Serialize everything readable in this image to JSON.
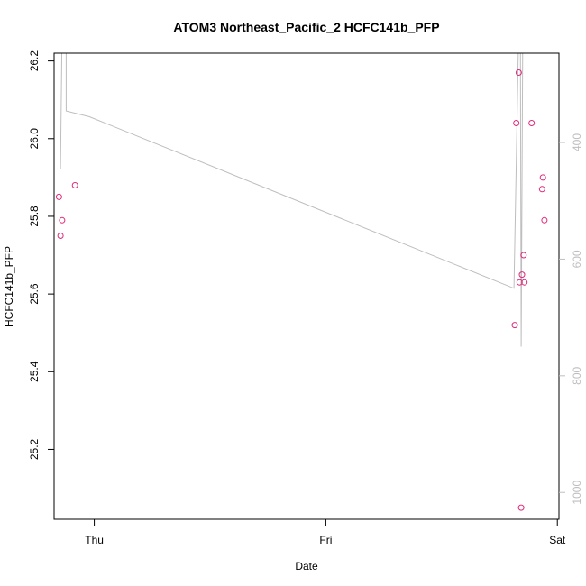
{
  "chart_data": {
    "type": "scatter",
    "title": "ATOM3 Northeast_Pacific_2 HCFC141b_PFP",
    "xlabel": "Date",
    "ylabel": "HCFC141b_PFP",
    "x_ticks": [
      "Thu",
      "Fri",
      "Sat"
    ],
    "x_range": [
      "Wed 19:50",
      "Sat 00:10"
    ],
    "ylim": [
      25.02,
      26.22
    ],
    "y_ticks": [
      "25.2",
      "25.4",
      "25.6",
      "25.8",
      "26.0",
      "26.2"
    ],
    "secondary_axis": {
      "side": "right",
      "ylim": [
        1046,
        247
      ],
      "ticks": [
        "400",
        "600",
        "800",
        "1000"
      ],
      "color": "#bebebe"
    },
    "points_color": "#e0287a",
    "line_color": "#bebebe",
    "points": [
      {
        "x": "Wed 20:20",
        "y": 25.85
      },
      {
        "x": "Wed 20:30",
        "y": 25.75
      },
      {
        "x": "Wed 20:40",
        "y": 25.79
      },
      {
        "x": "Wed 22:00",
        "y": 25.88
      },
      {
        "x": "Fri 19:35",
        "y": 25.52
      },
      {
        "x": "Fri 19:45",
        "y": 26.04
      },
      {
        "x": "Fri 20:00",
        "y": 26.17
      },
      {
        "x": "Fri 20:05",
        "y": 25.63
      },
      {
        "x": "Fri 20:15",
        "y": 25.05
      },
      {
        "x": "Fri 20:20",
        "y": 25.65
      },
      {
        "x": "Fri 20:30",
        "y": 25.7
      },
      {
        "x": "Fri 20:35",
        "y": 25.63
      },
      {
        "x": "Fri 21:20",
        "y": 26.04
      },
      {
        "x": "Fri 22:25",
        "y": 25.87
      },
      {
        "x": "Fri 22:30",
        "y": 25.9
      },
      {
        "x": "Fri 22:40",
        "y": 25.79
      }
    ],
    "pressure_line": [
      {
        "x": "Wed 20:30",
        "p": 445
      },
      {
        "x": "Wed 20:40",
        "p": 200
      },
      {
        "x": "Wed 21:05",
        "p": 200
      },
      {
        "x": "Wed 21:05",
        "p": 346
      },
      {
        "x": "Wed 23:30",
        "p": 356
      },
      {
        "x": "Fri 19:30",
        "p": 650
      },
      {
        "x": "Fri 20:00",
        "p": 200
      },
      {
        "x": "Fri 20:10",
        "p": 200
      },
      {
        "x": "Fri 20:15",
        "p": 750
      },
      {
        "x": "Fri 20:25",
        "p": 200
      },
      {
        "x": "Fri 21:40",
        "p": 200
      },
      {
        "x": "Fri 22:20",
        "p": 200
      },
      {
        "x": "Fri 22:50",
        "p": 200
      }
    ]
  }
}
